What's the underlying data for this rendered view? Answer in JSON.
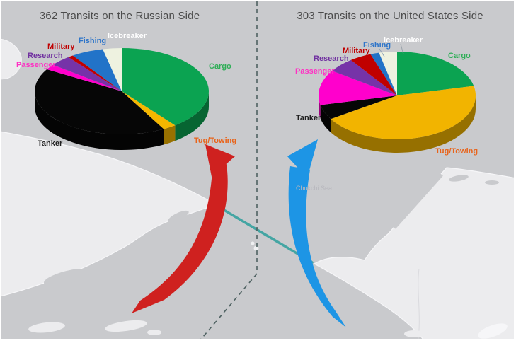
{
  "map": {
    "sea_label": "Chukchi Sea",
    "colors": {
      "water": "#c9cacd",
      "land": "#ececee",
      "land_highlight": "#f6f6f8",
      "divider_dash": "#4f6262",
      "strait_line": "#44a5a3",
      "red_arrow": "#cf211f",
      "blue_arrow": "#1d95e5"
    }
  },
  "chart_data": [
    {
      "type": "pie",
      "title": "362 Transits on the Russian Side",
      "side": "Russian",
      "total_transits": 362,
      "value_units": "percent of transits (estimated from slice angles)",
      "legend_position": "labels around pie",
      "slices": [
        {
          "label": "Cargo",
          "value": 39.5,
          "color": "#0ba351",
          "label_color": "#2fae57"
        },
        {
          "label": "Tug/Towing",
          "value": 2.5,
          "color": "#f5b700",
          "label_color": "#e8641b"
        },
        {
          "label": "Tanker",
          "value": 41.5,
          "color": "#060606",
          "label_color": "#1f1f1f"
        },
        {
          "label": "Passenger",
          "value": 2.0,
          "color": "#ff00cc",
          "label_color": "#ff2fc4"
        },
        {
          "label": "Research",
          "value": 4.0,
          "color": "#7633a8",
          "label_color": "#7030a0"
        },
        {
          "label": "Military",
          "value": 1.0,
          "color": "#c00000",
          "label_color": "#c00000"
        },
        {
          "label": "Fishing",
          "value": 6.0,
          "color": "#2273c8",
          "label_color": "#2e75c9"
        },
        {
          "label": "Icebreaker",
          "value": 3.5,
          "color": "#eef2e0",
          "label_color": "#ffffff"
        }
      ]
    },
    {
      "type": "pie",
      "title": "303 Transits on the United States Side",
      "side": "United States",
      "total_transits": 303,
      "value_units": "percent of transits (estimated from slice angles)",
      "legend_position": "labels around pie",
      "slices": [
        {
          "label": "Cargo",
          "value": 21.5,
          "color": "#0ba351",
          "label_color": "#2fae57"
        },
        {
          "label": "Tug/Towing",
          "value": 44.5,
          "color": "#f2b400",
          "label_color": "#e8641b"
        },
        {
          "label": "Tanker",
          "value": 5.5,
          "color": "#060606",
          "label_color": "#1f1f1f"
        },
        {
          "label": "Passenger",
          "value": 13.0,
          "color": "#ff00cc",
          "label_color": "#ff2fc4"
        },
        {
          "label": "Research",
          "value": 5.5,
          "color": "#7633a8",
          "label_color": "#7030a0"
        },
        {
          "label": "Military",
          "value": 4.5,
          "color": "#c00000",
          "label_color": "#c00000"
        },
        {
          "label": "Fishing",
          "value": 1.8,
          "color": "#2273c8",
          "label_color": "#2e75c9"
        },
        {
          "label": "Icebreaker",
          "value": 3.7,
          "color": "#eef2e0",
          "label_color": "#ffffff"
        }
      ]
    }
  ]
}
